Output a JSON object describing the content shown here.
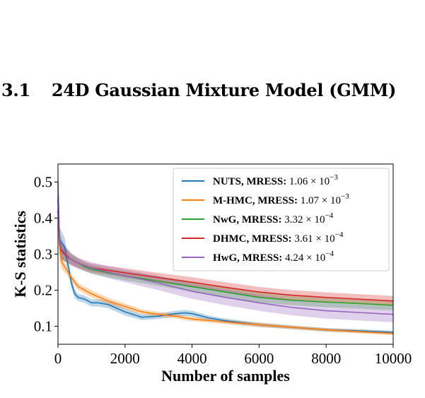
{
  "section": {
    "number": "3.1",
    "title": "24D Gaussian Mixture Model (GMM)"
  },
  "chart_data": {
    "type": "line",
    "xlabel": "Number of samples",
    "ylabel": "K-S statistics",
    "xlim": [
      0,
      10000
    ],
    "ylim": [
      0.05,
      0.55
    ],
    "xticks": [
      0,
      2000,
      4000,
      6000,
      8000,
      10000
    ],
    "xtick_labels": [
      "0",
      "2000",
      "4000",
      "6000",
      "8000",
      "10000"
    ],
    "yticks": [
      0.1,
      0.2,
      0.3,
      0.4,
      0.5
    ],
    "ytick_labels": [
      "0.1",
      "0.2",
      "0.3",
      "0.4",
      "0.5"
    ],
    "grid": false,
    "legend_position": "top-right",
    "series": [
      {
        "name": "NUTS",
        "metric_label": "MRESS:",
        "metric_mantissa": "1.06",
        "metric_exponent": "−3",
        "color": "#1f77b4",
        "x": [
          0,
          50,
          120,
          200,
          300,
          400,
          500,
          600,
          800,
          1000,
          1200,
          1500,
          2000,
          2500,
          3000,
          3500,
          3800,
          4000,
          4500,
          5000,
          6000,
          7000,
          8000,
          9000,
          10000
        ],
        "y": [
          0.42,
          0.34,
          0.33,
          0.32,
          0.27,
          0.22,
          0.19,
          0.18,
          0.175,
          0.165,
          0.165,
          0.16,
          0.14,
          0.125,
          0.128,
          0.135,
          0.137,
          0.135,
          0.123,
          0.115,
          0.104,
          0.097,
          0.09,
          0.087,
          0.083
        ],
        "band": [
          0.06,
          0.035,
          0.03,
          0.025,
          0.02,
          0.015,
          0.012,
          0.01,
          0.01,
          0.01,
          0.01,
          0.01,
          0.01,
          0.008,
          0.008,
          0.008,
          0.008,
          0.008,
          0.007,
          0.006,
          0.006,
          0.005,
          0.005,
          0.005,
          0.005
        ]
      },
      {
        "name": "M-HMC",
        "metric_label": "MRESS:",
        "metric_mantissa": "1.07",
        "metric_exponent": "−3",
        "color": "#ff7f0e",
        "x": [
          0,
          50,
          100,
          200,
          300,
          400,
          600,
          800,
          1000,
          1500,
          2000,
          2500,
          3000,
          3500,
          4000,
          5000,
          6000,
          7000,
          8000,
          9000,
          10000
        ],
        "y": [
          0.42,
          0.32,
          0.28,
          0.265,
          0.25,
          0.235,
          0.21,
          0.2,
          0.19,
          0.17,
          0.155,
          0.14,
          0.133,
          0.128,
          0.12,
          0.112,
          0.104,
          0.097,
          0.09,
          0.085,
          0.08
        ],
        "band": [
          0.06,
          0.03,
          0.02,
          0.015,
          0.012,
          0.01,
          0.01,
          0.01,
          0.01,
          0.009,
          0.008,
          0.007,
          0.007,
          0.006,
          0.006,
          0.006,
          0.006,
          0.005,
          0.005,
          0.005,
          0.005
        ]
      },
      {
        "name": "NwG",
        "metric_label": "MRESS:",
        "metric_mantissa": "3.32",
        "metric_exponent": "−4",
        "color": "#2ca02c",
        "x": [
          0,
          50,
          100,
          200,
          400,
          600,
          800,
          1000,
          1500,
          2000,
          3000,
          4000,
          5000,
          6000,
          7000,
          8000,
          9000,
          10000
        ],
        "y": [
          0.45,
          0.33,
          0.31,
          0.3,
          0.285,
          0.275,
          0.265,
          0.258,
          0.248,
          0.24,
          0.225,
          0.21,
          0.195,
          0.18,
          0.172,
          0.167,
          0.163,
          0.158
        ],
        "band": [
          0.06,
          0.03,
          0.025,
          0.02,
          0.015,
          0.013,
          0.012,
          0.012,
          0.012,
          0.013,
          0.013,
          0.014,
          0.014,
          0.014,
          0.014,
          0.014,
          0.014,
          0.014
        ]
      },
      {
        "name": "DHMC",
        "metric_label": "MRESS:",
        "metric_mantissa": "3.61",
        "metric_exponent": "−4",
        "color": "#d62728",
        "x": [
          0,
          50,
          100,
          200,
          400,
          600,
          800,
          1000,
          1500,
          2000,
          3000,
          4000,
          5000,
          6000,
          7000,
          8000,
          9000,
          10000
        ],
        "y": [
          0.46,
          0.33,
          0.31,
          0.3,
          0.285,
          0.275,
          0.268,
          0.262,
          0.255,
          0.248,
          0.235,
          0.222,
          0.208,
          0.195,
          0.186,
          0.18,
          0.175,
          0.17
        ],
        "band": [
          0.06,
          0.03,
          0.025,
          0.02,
          0.015,
          0.013,
          0.012,
          0.012,
          0.012,
          0.013,
          0.013,
          0.014,
          0.014,
          0.014,
          0.014,
          0.014,
          0.014,
          0.014
        ]
      },
      {
        "name": "HwG",
        "metric_label": "MRESS:",
        "metric_mantissa": "4.24",
        "metric_exponent": "−4",
        "color": "#9467bd",
        "x": [
          0,
          50,
          100,
          200,
          400,
          600,
          800,
          1000,
          1500,
          2000,
          3000,
          4000,
          5000,
          6000,
          7000,
          8000,
          9000,
          10000
        ],
        "y": [
          0.5,
          0.34,
          0.315,
          0.305,
          0.285,
          0.275,
          0.268,
          0.262,
          0.25,
          0.24,
          0.22,
          0.197,
          0.18,
          0.165,
          0.152,
          0.143,
          0.138,
          0.133
        ],
        "band": [
          0.07,
          0.035,
          0.028,
          0.022,
          0.018,
          0.016,
          0.016,
          0.016,
          0.017,
          0.018,
          0.02,
          0.021,
          0.022,
          0.022,
          0.022,
          0.022,
          0.022,
          0.022
        ]
      }
    ]
  }
}
